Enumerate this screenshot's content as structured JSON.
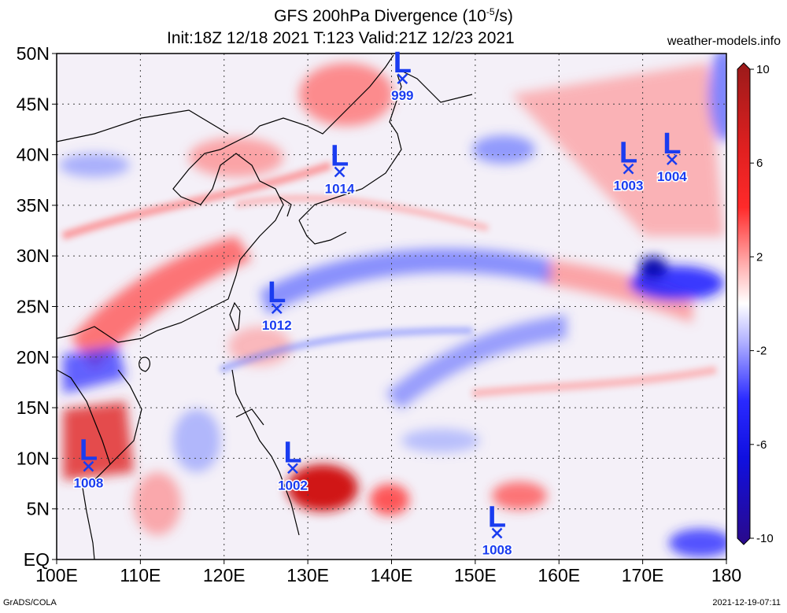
{
  "title": {
    "line1": "GFS 200hPa Divergence (10",
    "line1_sup": "-5",
    "line1_end": "/s)",
    "line2": "Init:18Z 12/18 2021 T:123 Valid:21Z 12/23 2021"
  },
  "site": "weather-models.info",
  "footer": {
    "left": "GrADS/COLA",
    "right": "2021-12-19-07:11"
  },
  "map": {
    "lon_range": [
      100,
      180
    ],
    "lat_range": [
      0,
      50
    ],
    "x_ticks": [
      "100E",
      "110E",
      "120E",
      "130E",
      "140E",
      "150E",
      "160E",
      "170E",
      "180"
    ],
    "y_ticks": [
      "EQ",
      "5N",
      "10N",
      "15N",
      "20N",
      "25N",
      "30N",
      "35N",
      "40N",
      "45N",
      "50N"
    ],
    "grid": "dotted every 10 degrees"
  },
  "colorbar": {
    "ticks": [
      "10",
      "6",
      "2",
      "-2",
      "-6",
      "-10"
    ],
    "colors": [
      "#a82020",
      "#ff0000",
      "#ffb4b4",
      "#ffffff",
      "#b4b4ff",
      "#0000ff",
      "#2a0a9a"
    ]
  },
  "lows": [
    {
      "label": "999",
      "lon": 141.3,
      "lat": 47.5
    },
    {
      "label": "1014",
      "lon": 133.8,
      "lat": 38.3
    },
    {
      "label": "1003",
      "lon": 168.3,
      "lat": 38.6
    },
    {
      "label": "1004",
      "lon": 173.5,
      "lat": 39.5
    },
    {
      "label": "1012",
      "lon": 126.3,
      "lat": 24.8
    },
    {
      "label": "1008",
      "lon": 103.8,
      "lat": 9.2
    },
    {
      "label": "1002",
      "lon": 128.2,
      "lat": 9.0
    },
    {
      "label": "1008",
      "lon": 152.6,
      "lat": 2.6
    }
  ]
}
